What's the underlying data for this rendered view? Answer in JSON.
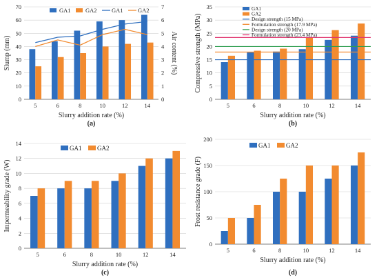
{
  "colors": {
    "ga1": "#2F6FBF",
    "ga2": "#F28B30",
    "axis": "#555555",
    "grid": "#D0D0D0"
  },
  "chart_data": [
    {
      "panel_label": "(a)",
      "type": "bar+line",
      "categories": [
        "5",
        "6",
        "8",
        "10",
        "12",
        "14"
      ],
      "xlabel": "Slurry addition rate (%)",
      "ylabel": "Slump (mm)",
      "y2label": "Air content (%)",
      "ylim": [
        0,
        70
      ],
      "yticks": [
        0,
        10,
        20,
        30,
        40,
        50,
        60,
        70
      ],
      "y2lim": [
        0,
        7
      ],
      "y2ticks": [
        0,
        1,
        2,
        3,
        4,
        5,
        6,
        7
      ],
      "grid": true,
      "legend": [
        "GA1",
        "GA2",
        "GA1",
        "GA2"
      ],
      "series": [
        {
          "name": "GA1",
          "kind": "bar",
          "axis": "left",
          "values": [
            38,
            44,
            52,
            59,
            60,
            64
          ]
        },
        {
          "name": "GA2",
          "kind": "bar",
          "axis": "left",
          "values": [
            25,
            32,
            35,
            40,
            42,
            43
          ]
        },
        {
          "name": "GA1",
          "kind": "line",
          "axis": "right",
          "values": [
            4.3,
            4.7,
            4.8,
            5.3,
            5.7,
            5.9
          ]
        },
        {
          "name": "GA2",
          "kind": "line",
          "axis": "right",
          "values": [
            4.0,
            4.5,
            4.1,
            4.9,
            5.3,
            4.9
          ]
        }
      ]
    },
    {
      "panel_label": "(b)",
      "type": "bar",
      "categories": [
        "5",
        "6",
        "8",
        "10",
        "12",
        "14"
      ],
      "xlabel": "Slurry addition rate (%)",
      "ylabel": "Compressive strength (MPa)",
      "ylim": [
        0,
        35
      ],
      "yticks": [
        0,
        5,
        10,
        15,
        20,
        25,
        30,
        35
      ],
      "grid": true,
      "legend": [
        "GA1",
        "GA2",
        "Design strength (15 MPa)",
        "Formulation strength (17.9 MPa)",
        "Design strength (20 MPa)",
        "Formulation strength (23.4 MPa)"
      ],
      "series": [
        {
          "name": "GA1",
          "kind": "bar",
          "values": [
            14.1,
            17.8,
            18.1,
            19.0,
            22.5,
            24.1
          ]
        },
        {
          "name": "GA2",
          "kind": "bar",
          "values": [
            16.5,
            18.4,
            19.2,
            23.5,
            26.2,
            28.7
          ]
        }
      ],
      "reference_lines": [
        {
          "name": "Design strength (15 MPa)",
          "value": 15,
          "color": "#2F6FBF"
        },
        {
          "name": "Formulation strength (17.9 MPa)",
          "value": 17.9,
          "color": "#F28B30"
        },
        {
          "name": "Design strength (20 MPa)",
          "value": 20,
          "color": "#2E9E4F"
        },
        {
          "name": "Formulation strength (23.4 MPa)",
          "value": 23.4,
          "color": "#E0356E"
        }
      ]
    },
    {
      "panel_label": "(c)",
      "type": "bar",
      "categories": [
        "5",
        "6",
        "8",
        "10",
        "12",
        "14"
      ],
      "xlabel": "Slurry addition rate (%)",
      "ylabel": "Impermeability grade (W)",
      "ylim": [
        0,
        14
      ],
      "yticks": [
        0,
        2,
        4,
        6,
        8,
        10,
        12,
        14
      ],
      "grid": true,
      "legend": [
        "GA1",
        "GA2"
      ],
      "series": [
        {
          "name": "GA1",
          "kind": "bar",
          "values": [
            7,
            8,
            8,
            9,
            11,
            12
          ]
        },
        {
          "name": "GA2",
          "kind": "bar",
          "values": [
            8,
            9,
            9,
            10,
            12,
            13
          ]
        }
      ]
    },
    {
      "panel_label": "(d)",
      "type": "bar",
      "categories": [
        "5",
        "6",
        "8",
        "10",
        "12",
        "14"
      ],
      "xlabel": "Slurry addition rate (%)",
      "ylabel": "Frost resistance grade (F)",
      "ylim": [
        0,
        200
      ],
      "yticks": [
        0,
        50,
        100,
        150,
        200
      ],
      "grid": true,
      "legend": [
        "GA1",
        "GA2"
      ],
      "series": [
        {
          "name": "GA1",
          "kind": "bar",
          "values": [
            25,
            50,
            100,
            100,
            125,
            150
          ]
        },
        {
          "name": "GA2",
          "kind": "bar",
          "values": [
            50,
            75,
            125,
            150,
            150,
            175
          ]
        }
      ]
    }
  ]
}
